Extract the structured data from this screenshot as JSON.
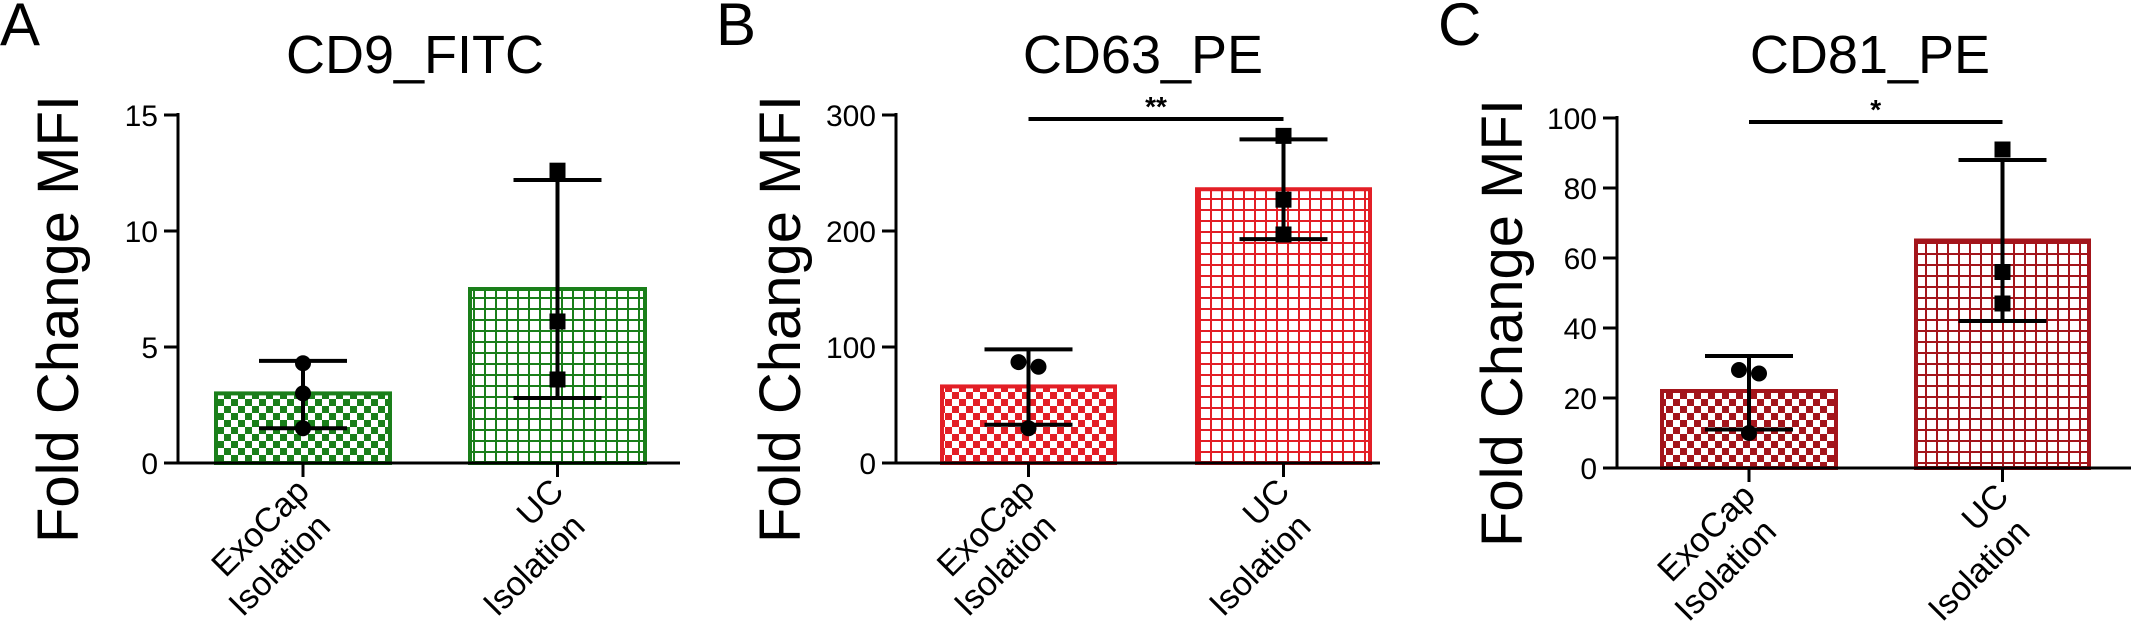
{
  "chart_data": [
    {
      "type": "bar",
      "panel_label": "A",
      "title": "CD9_FITC",
      "ylabel": "Fold Change MFI",
      "ylim": [
        0,
        15
      ],
      "yticks": [
        0,
        5,
        10,
        15
      ],
      "categories": [
        "ExoCap Isolation",
        "UC Isolation"
      ],
      "category_lines": [
        [
          "ExoCap",
          "Isolation"
        ],
        [
          "UC",
          "Isolation"
        ]
      ],
      "values": [
        3.0,
        7.5
      ],
      "error_low": [
        1.5,
        2.8
      ],
      "error_high": [
        4.4,
        12.2
      ],
      "points": [
        [
          4.3,
          3.0,
          1.5
        ],
        [
          12.6,
          6.1,
          3.6
        ]
      ],
      "point_markers": [
        "circle",
        "square"
      ],
      "bar_colors": [
        "#1a7f1a",
        "#1a7f1a"
      ],
      "bar_patterns": [
        "checker",
        "grid"
      ],
      "significance": null
    },
    {
      "type": "bar",
      "panel_label": "B",
      "title": "CD63_PE",
      "ylabel": "Fold Change MFI",
      "ylim": [
        0,
        300
      ],
      "yticks": [
        0,
        100,
        200,
        300
      ],
      "categories": [
        "ExoCap Isolation",
        "UC Isolation"
      ],
      "category_lines": [
        [
          "ExoCap",
          "Isolation"
        ],
        [
          "UC",
          "Isolation"
        ]
      ],
      "values": [
        66,
        236
      ],
      "error_low": [
        33,
        193
      ],
      "error_high": [
        98,
        279
      ],
      "points": [
        [
          87,
          83,
          30
        ],
        [
          282,
          227,
          197
        ]
      ],
      "point_markers": [
        "circle",
        "square"
      ],
      "bar_colors": [
        "#e31f26",
        "#e31f26"
      ],
      "bar_patterns": [
        "checker",
        "grid"
      ],
      "significance": "**"
    },
    {
      "type": "bar",
      "panel_label": "C",
      "title": "CD81_PE",
      "ylabel": "Fold Change MFI",
      "ylim": [
        0,
        100
      ],
      "yticks": [
        0,
        20,
        40,
        60,
        80,
        100
      ],
      "categories": [
        "ExoCap Isolation",
        "UC Isolation"
      ],
      "category_lines": [
        [
          "ExoCap",
          "Isolation"
        ],
        [
          "UC",
          "Isolation"
        ]
      ],
      "values": [
        22,
        65
      ],
      "error_low": [
        11,
        42
      ],
      "error_high": [
        32,
        88
      ],
      "points": [
        [
          28,
          27,
          10
        ],
        [
          91,
          56,
          47
        ]
      ],
      "point_markers": [
        "circle",
        "square"
      ],
      "bar_colors": [
        "#a3151b",
        "#a3151b"
      ],
      "bar_patterns": [
        "checker",
        "grid"
      ],
      "significance": "*"
    }
  ]
}
